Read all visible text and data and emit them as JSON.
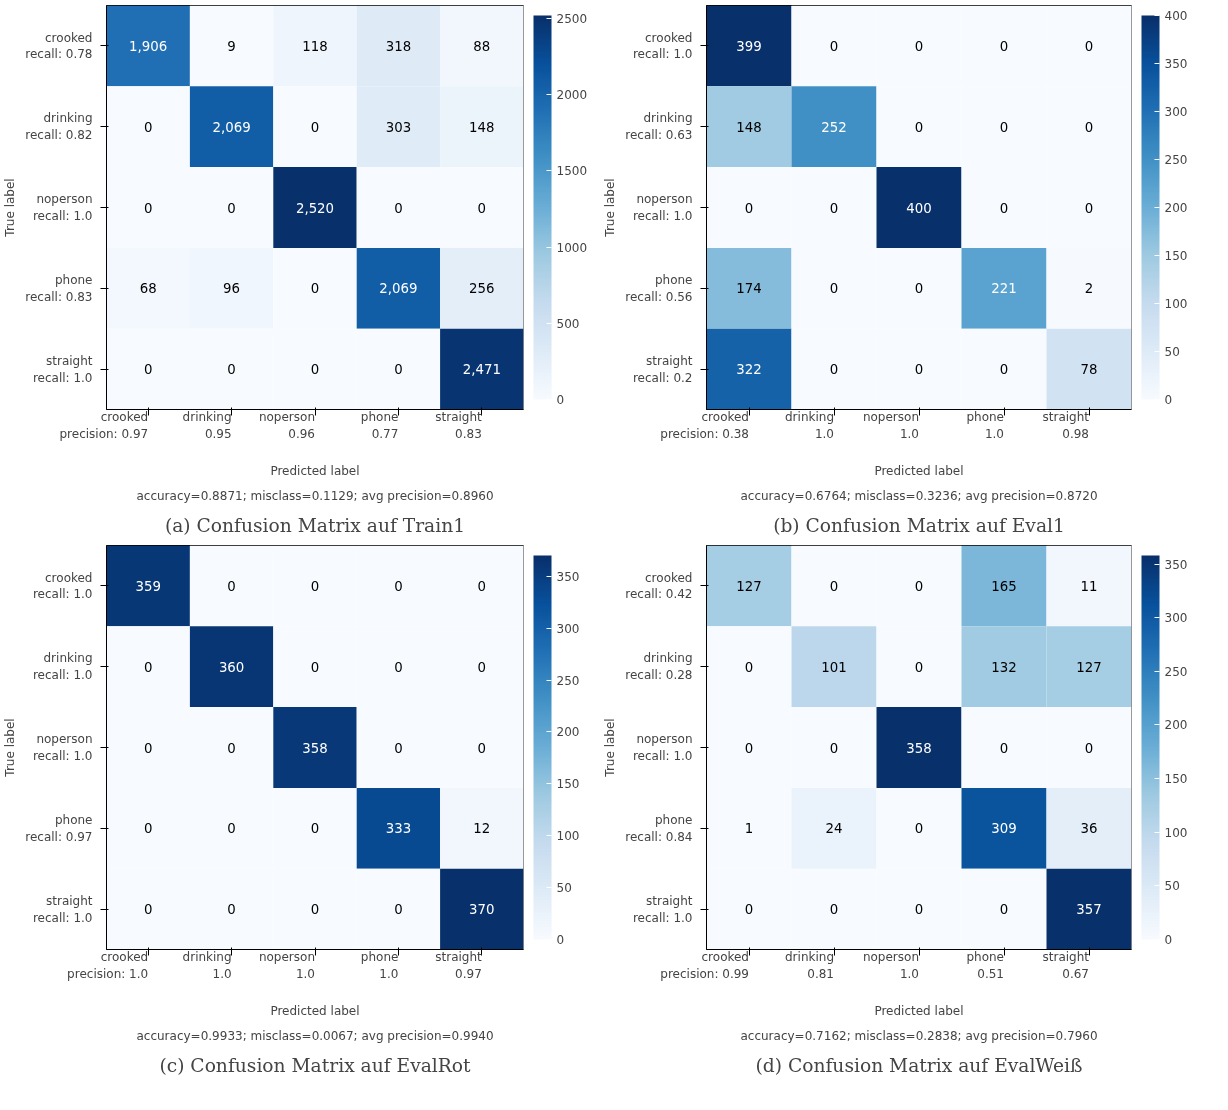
{
  "chart_data": [
    {
      "type": "heatmap",
      "title": "(a) Confusion Matrix auf Train1",
      "xlabel": "Predicted label",
      "ylabel": "True label",
      "categories": [
        "crooked\nprecision: 0.97",
        "drinking\n0.95",
        "noperson\n0.96",
        "phone\n0.77",
        "straight\n0.83"
      ],
      "y_categories": [
        "crooked\nrecall: 0.78",
        "drinking\nrecall: 0.82",
        "noperson\nrecall: 1.0",
        "phone\nrecall: 0.83",
        "straight\nrecall: 1.0"
      ],
      "cells": [
        [
          1906,
          9,
          118,
          318,
          88
        ],
        [
          0,
          2069,
          0,
          303,
          148
        ],
        [
          0,
          0,
          2520,
          0,
          0
        ],
        [
          68,
          96,
          0,
          2069,
          256
        ],
        [
          0,
          0,
          0,
          0,
          2471
        ]
      ],
      "cell_labels": [
        [
          "1,906",
          "9",
          "118",
          "318",
          "88"
        ],
        [
          "0",
          "2,069",
          "0",
          "303",
          "148"
        ],
        [
          "0",
          "0",
          "2,520",
          "0",
          "0"
        ],
        [
          "68",
          "96",
          "0",
          "2,069",
          "256"
        ],
        [
          "0",
          "0",
          "0",
          "0",
          "2,471"
        ]
      ],
      "clim": [
        0,
        2520
      ],
      "cticks": [
        0,
        500,
        1000,
        1500,
        2000,
        2500
      ],
      "annotations": [
        "accuracy=0.8871; misclass=0.1129; avg precision=0.8960"
      ]
    },
    {
      "type": "heatmap",
      "title": "(b) Confusion Matrix auf Eval1",
      "xlabel": "Predicted label",
      "ylabel": "True label",
      "categories": [
        "crooked\nprecision: 0.38",
        "drinking\n1.0",
        "noperson\n1.0",
        "phone\n1.0",
        "straight\n0.98"
      ],
      "y_categories": [
        "crooked\nrecall: 1.0",
        "drinking\nrecall: 0.63",
        "noperson\nrecall: 1.0",
        "phone\nrecall: 0.56",
        "straight\nrecall: 0.2"
      ],
      "cells": [
        [
          399,
          0,
          0,
          0,
          0
        ],
        [
          148,
          252,
          0,
          0,
          0
        ],
        [
          0,
          0,
          400,
          0,
          0
        ],
        [
          174,
          0,
          0,
          221,
          2
        ],
        [
          322,
          0,
          0,
          0,
          78
        ]
      ],
      "cell_labels": [
        [
          "399",
          "0",
          "0",
          "0",
          "0"
        ],
        [
          "148",
          "252",
          "0",
          "0",
          "0"
        ],
        [
          "0",
          "0",
          "400",
          "0",
          "0"
        ],
        [
          "174",
          "0",
          "0",
          "221",
          "2"
        ],
        [
          "322",
          "0",
          "0",
          "0",
          "78"
        ]
      ],
      "clim": [
        0,
        400
      ],
      "cticks": [
        0,
        50,
        100,
        150,
        200,
        250,
        300,
        350,
        400
      ],
      "annotations": [
        "accuracy=0.6764; misclass=0.3236; avg precision=0.8720"
      ]
    },
    {
      "type": "heatmap",
      "title": "(c) Confusion Matrix auf EvalRot",
      "xlabel": "Predicted label",
      "ylabel": "True label",
      "categories": [
        "crooked\nprecision: 1.0",
        "drinking\n1.0",
        "noperson\n1.0",
        "phone\n1.0",
        "straight\n0.97"
      ],
      "y_categories": [
        "crooked\nrecall: 1.0",
        "drinking\nrecall: 1.0",
        "noperson\nrecall: 1.0",
        "phone\nrecall: 0.97",
        "straight\nrecall: 1.0"
      ],
      "cells": [
        [
          359,
          0,
          0,
          0,
          0
        ],
        [
          0,
          360,
          0,
          0,
          0
        ],
        [
          0,
          0,
          358,
          0,
          0
        ],
        [
          0,
          0,
          0,
          333,
          12
        ],
        [
          0,
          0,
          0,
          0,
          370
        ]
      ],
      "cell_labels": [
        [
          "359",
          "0",
          "0",
          "0",
          "0"
        ],
        [
          "0",
          "360",
          "0",
          "0",
          "0"
        ],
        [
          "0",
          "0",
          "358",
          "0",
          "0"
        ],
        [
          "0",
          "0",
          "0",
          "333",
          "12"
        ],
        [
          "0",
          "0",
          "0",
          "0",
          "370"
        ]
      ],
      "clim": [
        0,
        370
      ],
      "cticks": [
        0,
        50,
        100,
        150,
        200,
        250,
        300,
        350
      ],
      "annotations": [
        "accuracy=0.9933; misclass=0.0067; avg precision=0.9940"
      ]
    },
    {
      "type": "heatmap",
      "title": "(d) Confusion Matrix auf EvalWeiß",
      "xlabel": "Predicted label",
      "ylabel": "True label",
      "categories": [
        "crooked\nprecision: 0.99",
        "drinking\n0.81",
        "noperson\n1.0",
        "phone\n0.51",
        "straight\n0.67"
      ],
      "y_categories": [
        "crooked\nrecall: 0.42",
        "drinking\nrecall: 0.28",
        "noperson\nrecall: 1.0",
        "phone\nrecall: 0.84",
        "straight\nrecall: 1.0"
      ],
      "cells": [
        [
          127,
          0,
          0,
          165,
          11
        ],
        [
          0,
          101,
          0,
          132,
          127
        ],
        [
          0,
          0,
          358,
          0,
          0
        ],
        [
          1,
          24,
          0,
          309,
          36
        ],
        [
          0,
          0,
          0,
          0,
          357
        ]
      ],
      "cell_labels": [
        [
          "127",
          "0",
          "0",
          "165",
          "11"
        ],
        [
          "0",
          "101",
          "0",
          "132",
          "127"
        ],
        [
          "0",
          "0",
          "358",
          "0",
          "0"
        ],
        [
          "1",
          "24",
          "0",
          "309",
          "36"
        ],
        [
          "0",
          "0",
          "0",
          "0",
          "357"
        ]
      ],
      "clim": [
        0,
        358
      ],
      "cticks": [
        0,
        50,
        100,
        150,
        200,
        250,
        300,
        350
      ],
      "annotations": [
        "accuracy=0.7162; misclass=0.2838; avg precision=0.7960"
      ]
    }
  ]
}
